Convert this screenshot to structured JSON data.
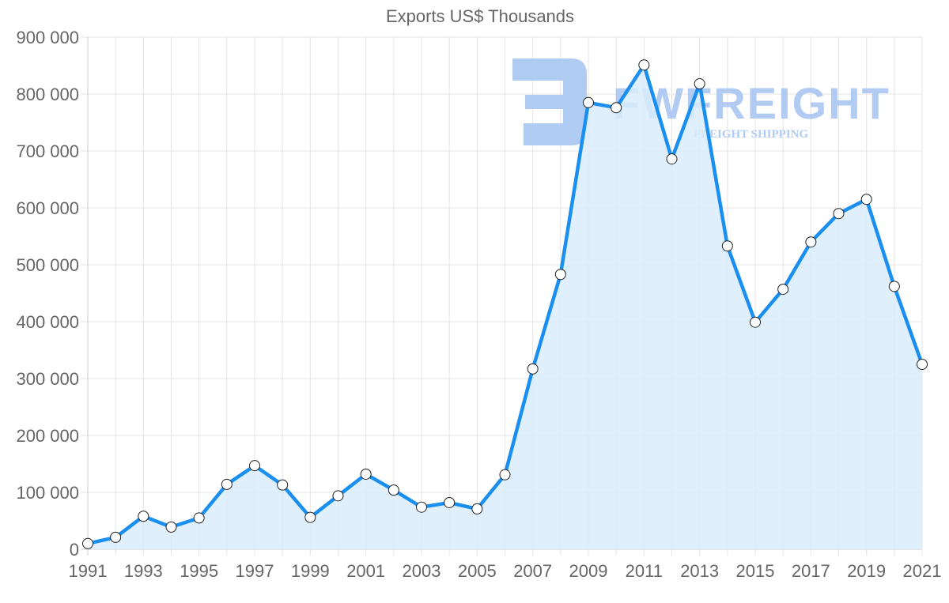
{
  "chart_data": {
    "type": "area",
    "title": "Exports US$ Thousands",
    "xlabel": "",
    "ylabel": "",
    "ylim": [
      0,
      900000
    ],
    "yticks": [
      "0",
      "100 000",
      "200 000",
      "300 000",
      "400 000",
      "500 000",
      "600 000",
      "700 000",
      "800 000",
      "900 000"
    ],
    "xticks": [
      "1991",
      "1993",
      "1995",
      "1997",
      "1999",
      "2001",
      "2003",
      "2005",
      "2007",
      "2009",
      "2011",
      "2013",
      "2015",
      "2017",
      "2019",
      "2021"
    ],
    "grid": true,
    "legend": "none",
    "x": [
      1991,
      1992,
      1993,
      1994,
      1995,
      1996,
      1997,
      1998,
      1999,
      2000,
      2001,
      2002,
      2003,
      2004,
      2005,
      2006,
      2007,
      2008,
      2009,
      2010,
      2011,
      2012,
      2013,
      2014,
      2015,
      2016,
      2017,
      2018,
      2019,
      2020,
      2021
    ],
    "series": [
      {
        "name": "Exports US$ Thousands",
        "color": "#1a8ff0",
        "fill": "#d9ecfc",
        "values": [
          10000,
          21000,
          58000,
          39000,
          55000,
          114000,
          147000,
          113000,
          56000,
          94000,
          132000,
          104000,
          74000,
          82000,
          71000,
          131000,
          317000,
          483000,
          785000,
          776000,
          851000,
          686000,
          818000,
          533000,
          399000,
          457000,
          540000,
          590000,
          615000,
          462000,
          325000
        ]
      }
    ]
  },
  "watermark": {
    "brand": "FWFREIGHT",
    "tagline": "FREIGHT SHIPPING",
    "color": "#a9c6f2"
  }
}
